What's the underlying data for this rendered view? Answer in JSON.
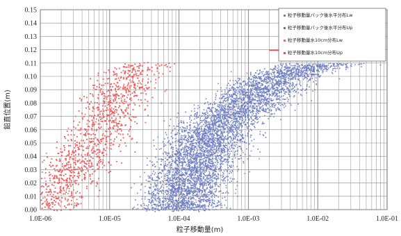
{
  "chart_data": {
    "type": "scatter",
    "xlabel": "粒子移動量(m)",
    "ylabel": "鉛直位置(m)",
    "x_scale": "log",
    "xlim": [
      1e-06,
      0.1
    ],
    "ylim": [
      0,
      0.15
    ],
    "grid": true,
    "legend_placement": "top-right",
    "x_tick_labels": [
      "1.0E-06",
      "1.0E-05",
      "1.0E-04",
      "1.0E-03",
      "1.0E-02",
      "1.0E-01"
    ],
    "y_tick_labels": [
      "0.00",
      "0.01",
      "0.02",
      "0.03",
      "0.04",
      "0.05",
      "0.06",
      "0.07",
      "0.08",
      "0.09",
      "0.10",
      "0.11",
      "0.12",
      "0.13",
      "0.14",
      "0.15"
    ],
    "series": [
      {
        "name": "粒子移動量パック後水平分布Lw",
        "color": "#6f7fc2",
        "x": [
          0.0001,
          0.00011,
          0.00013,
          0.00016,
          0.0002,
          0.00025,
          0.0003,
          0.0004,
          0.0005,
          0.0007,
          0.001,
          0.0012,
          0.0015,
          0.002,
          0.003,
          0.005,
          0.01,
          0.02
        ],
        "y": [
          0.0,
          0.01,
          0.02,
          0.03,
          0.04,
          0.05,
          0.06,
          0.065,
          0.07,
          0.075,
          0.08,
          0.085,
          0.09,
          0.095,
          0.1,
          0.105,
          0.109,
          0.11
        ]
      },
      {
        "name": "粒子移動量パック後水平分布Up",
        "color": "#5a6cb8",
        "x": [],
        "y": []
      },
      {
        "name": "粒子移動量水10cm分布Lw",
        "color": "#f0605e",
        "x": [
          1e-06,
          1.5e-06,
          2e-06,
          3e-06,
          5e-06,
          7e-06,
          1e-05,
          1.5e-05,
          2e-05,
          3e-05,
          4e-05
        ],
        "y": [
          0.0,
          0.01,
          0.02,
          0.03,
          0.045,
          0.06,
          0.07,
          0.09,
          0.1,
          0.11,
          0.11
        ]
      },
      {
        "name": "粒子移動量水10cm分布Up",
        "color": "#e84a4a",
        "x": [
          0.002,
          0.003,
          0.005,
          0.007,
          0.01,
          0.015,
          0.02
        ],
        "y": [
          0.12,
          0.12,
          0.121,
          0.121,
          0.121,
          0.122,
          0.122
        ]
      }
    ]
  }
}
